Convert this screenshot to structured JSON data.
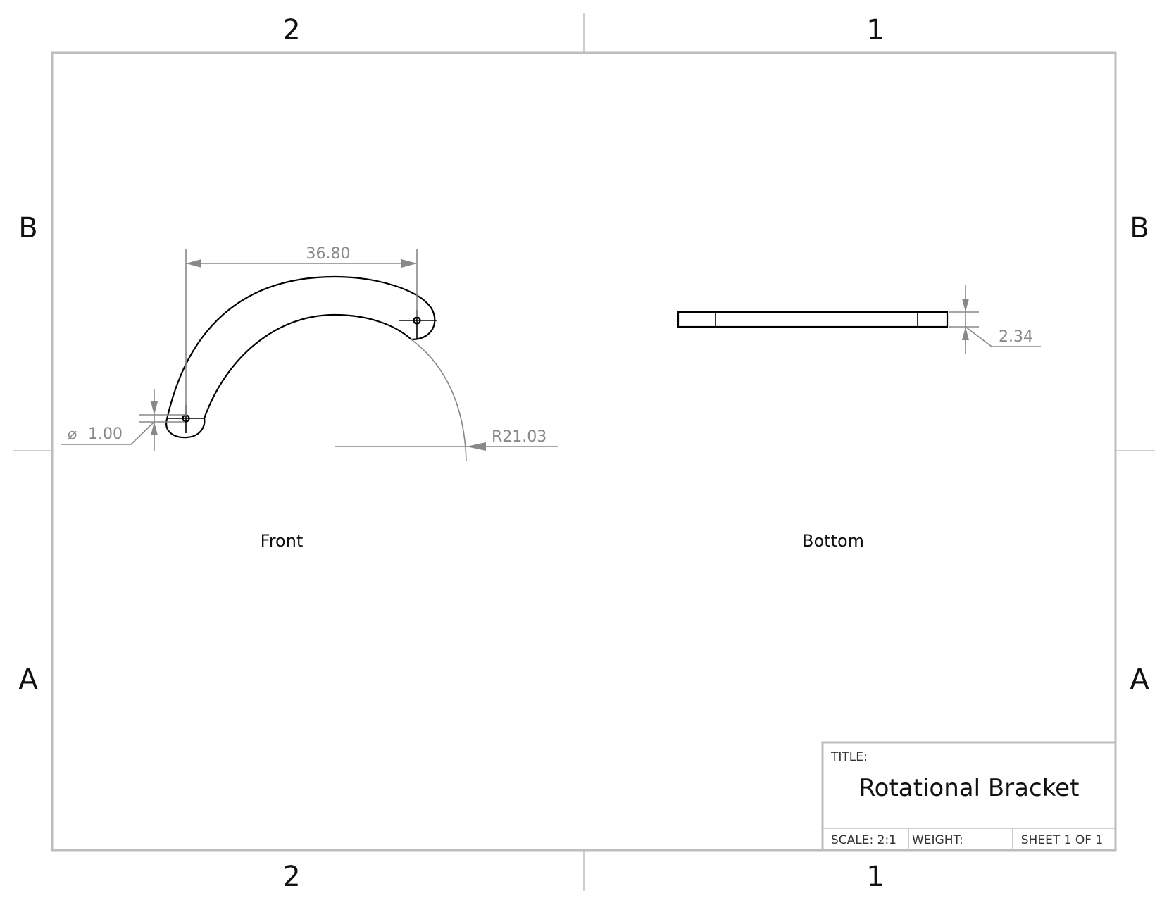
{
  "zones": {
    "top_left": "2",
    "top_right": "1",
    "bottom_left": "2",
    "bottom_right": "1",
    "left_upper": "B",
    "left_lower": "A",
    "right_upper": "B",
    "right_lower": "A"
  },
  "views": {
    "front_label": "Front",
    "bottom_label": "Bottom"
  },
  "dimensions": {
    "width": "36.80",
    "radius": "R21.03",
    "hole_diameter": "1.00",
    "hole_diameter_symbol": "⌀",
    "thickness": "2.34"
  },
  "title_block": {
    "title_label": "TITLE:",
    "title": "Rotational Bracket",
    "scale": "SCALE: 2:1",
    "weight": "WEIGHT:",
    "sheet": "SHEET 1 OF 1"
  },
  "colors": {
    "frame": "#bdbdbd",
    "dimension": "#888888",
    "geometry": "#000000"
  }
}
